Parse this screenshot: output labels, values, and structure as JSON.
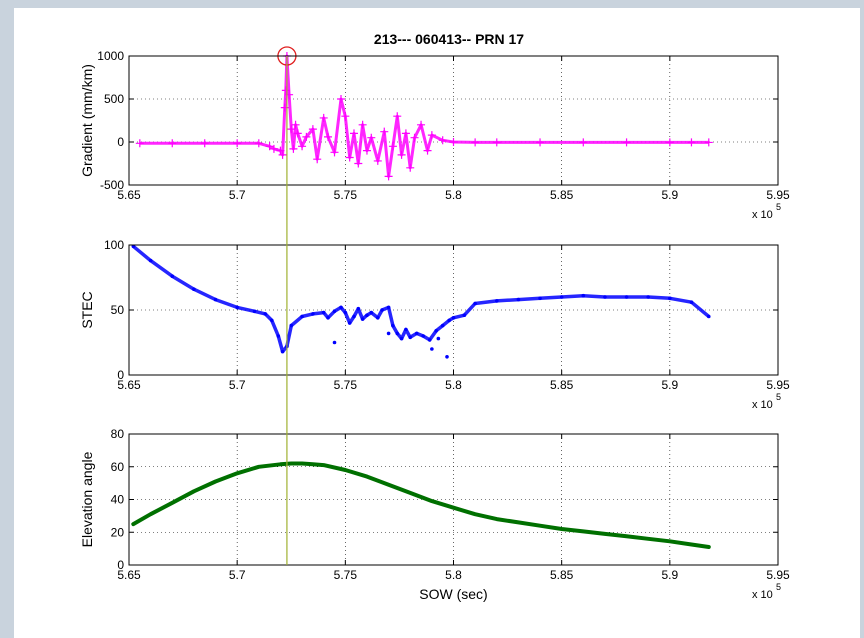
{
  "chart_data": {
    "title": "213--- 060413-- PRN 17",
    "marker_x": 572300,
    "x_exponent_label": "x 10",
    "x_exponent_power": "5",
    "xticks": [
      565000,
      570000,
      575000,
      580000,
      585000,
      590000,
      595000
    ],
    "xtick_labels": [
      "5.65",
      "5.7",
      "5.75",
      "5.8",
      "5.85",
      "5.9",
      "5.95"
    ],
    "xlim": [
      565000,
      595000
    ],
    "plots": [
      {
        "type": "scatter",
        "marker": "plus",
        "color": "#ff00ff",
        "ylabel": "Gradient (mm/km)",
        "xlabel": "",
        "ylim": [
          -500,
          1000
        ],
        "yticks": [
          -500,
          0,
          500,
          1000
        ],
        "ytick_labels": [
          "-500",
          "0",
          "500",
          "1000"
        ],
        "grid": true,
        "highlight": {
          "x": 572300,
          "y": 1000,
          "color": "#e02020"
        },
        "series": [
          {
            "x": [
              565500,
              567000,
              568500,
              570000,
              571000,
              571500,
              571700,
              572000,
              572100,
              572200,
              572250,
              572300,
              572400,
              572500,
              572600,
              572700,
              572800,
              573000,
              573200,
              573500,
              573700,
              574000,
              574200,
              574500,
              574800,
              575000,
              575200,
              575400,
              575600,
              575800,
              576000,
              576200,
              576500,
              576800,
              577000,
              577200,
              577400,
              577600,
              577800,
              578000,
              578200,
              578500,
              578800,
              579000,
              579500,
              580000,
              581000,
              582000,
              584000,
              586000,
              588000,
              590000,
              591000,
              591800
            ],
            "y": [
              -15,
              -15,
              -15,
              -15,
              -15,
              -50,
              -80,
              -100,
              -150,
              400,
              600,
              1000,
              550,
              150,
              -80,
              200,
              100,
              -50,
              60,
              150,
              -200,
              280,
              60,
              -120,
              500,
              300,
              -180,
              100,
              -250,
              200,
              -100,
              50,
              -220,
              120,
              -400,
              -50,
              300,
              -150,
              100,
              -300,
              50,
              200,
              -100,
              80,
              20,
              0,
              -5,
              -5,
              -5,
              -5,
              -5,
              -5,
              -5,
              -5
            ]
          }
        ]
      },
      {
        "type": "scatter",
        "marker": "dot",
        "color": "#0000ff",
        "ylabel": "STEC",
        "xlabel": "",
        "ylim": [
          0,
          100
        ],
        "yticks": [
          0,
          50,
          100
        ],
        "ytick_labels": [
          "0",
          "50",
          "100"
        ],
        "grid": true,
        "series": [
          {
            "x": [
              565200,
              566000,
              567000,
              568000,
              569000,
              570000,
              570800,
              571300,
              571600,
              571900,
              572100,
              572300,
              572500,
              573000,
              573500,
              574000,
              574200,
              574500,
              574800,
              575000,
              575200,
              575400,
              575600,
              575800,
              576000,
              576200,
              576500,
              576700,
              577000,
              577200,
              577400,
              577600,
              577800,
              578000,
              578300,
              578600,
              578900,
              579200,
              579500,
              579800,
              580000,
              580500,
              581000,
              582000,
              583000,
              584000,
              585000,
              586000,
              587000,
              588000,
              589000,
              590000,
              591000,
              591800
            ],
            "y": [
              99,
              88,
              76,
              66,
              58,
              52,
              49,
              47,
              42,
              30,
              18,
              22,
              38,
              45,
              47,
              48,
              44,
              49,
              52,
              48,
              40,
              45,
              51,
              43,
              46,
              48,
              44,
              50,
              52,
              38,
              32,
              28,
              35,
              29,
              32,
              30,
              27,
              34,
              38,
              42,
              44,
              46,
              55,
              57,
              58,
              59,
              60,
              61,
              60,
              60,
              60,
              59,
              56,
              45
            ]
          },
          {
            "x": [
              574500,
              577000,
              579000,
              579300,
              579700
            ],
            "y": [
              25,
              32,
              20,
              28,
              14
            ]
          }
        ]
      },
      {
        "type": "line",
        "color": "#007000",
        "ylabel": "Elevation angle",
        "xlabel": "SOW (sec)",
        "ylim": [
          0,
          80
        ],
        "yticks": [
          0,
          20,
          40,
          60,
          80
        ],
        "ytick_labels": [
          "0",
          "20",
          "40",
          "60",
          "80"
        ],
        "grid": true,
        "series": [
          {
            "x": [
              565200,
              566000,
              567000,
              568000,
              569000,
              570000,
              571000,
              572000,
              572500,
              573000,
              573500,
              574000,
              575000,
              576000,
              577000,
              578000,
              579000,
              580000,
              581000,
              582000,
              583000,
              584000,
              585000,
              586000,
              587000,
              588000,
              589000,
              590000,
              591000,
              591800
            ],
            "y": [
              25,
              31,
              38,
              45,
              51,
              56,
              60,
              61.5,
              62,
              62,
              61.5,
              61,
              58,
              54,
              49,
              44,
              39,
              35,
              31,
              28,
              26,
              24,
              22,
              20.5,
              19,
              17.5,
              16,
              14.5,
              12.5,
              11
            ]
          }
        ]
      }
    ]
  }
}
